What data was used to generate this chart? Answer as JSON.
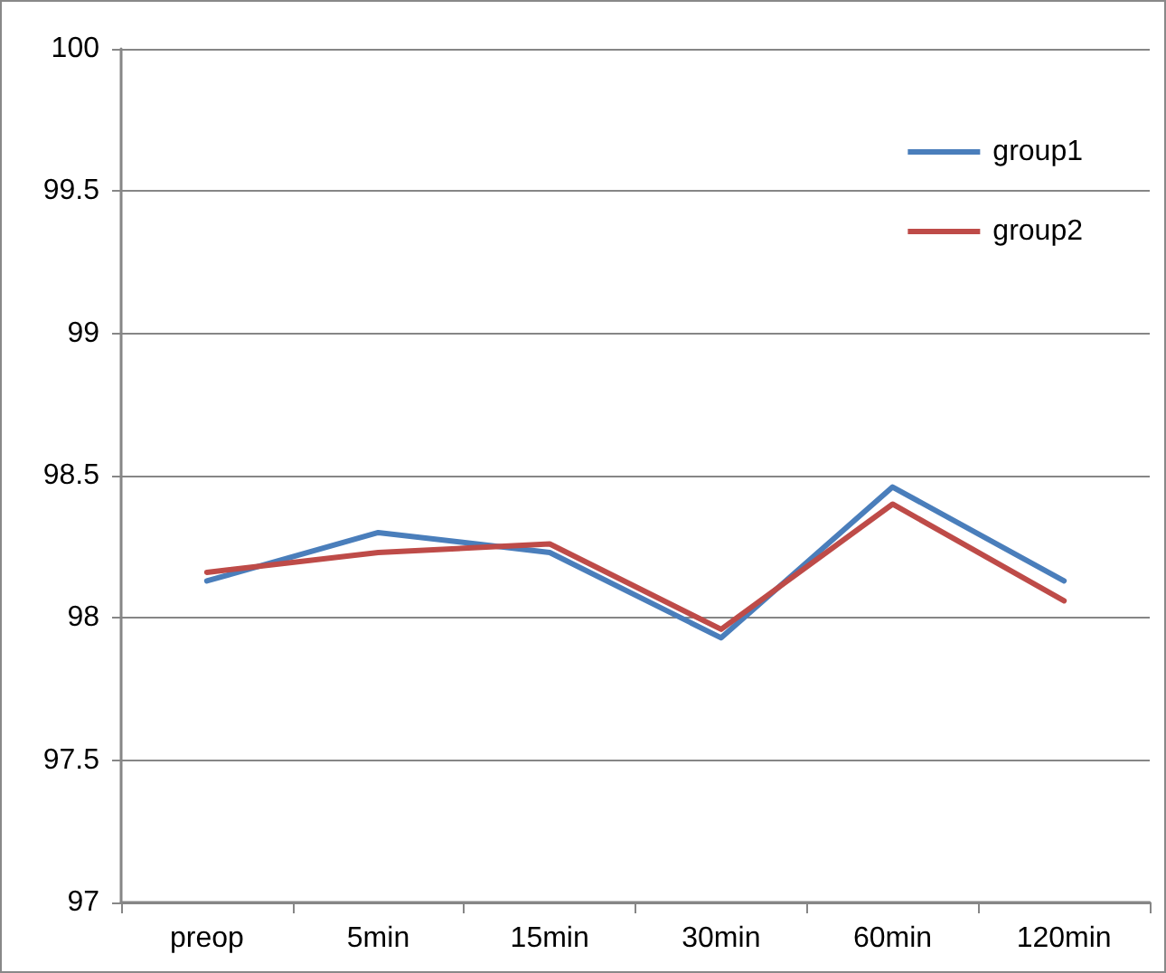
{
  "chart_data": {
    "type": "line",
    "categories": [
      "preop",
      "5min",
      "15min",
      "30min",
      "60min",
      "120min"
    ],
    "series": [
      {
        "name": "group1",
        "color": "#4a7ebb",
        "values": [
          98.13,
          98.3,
          98.23,
          97.93,
          98.46,
          98.13
        ]
      },
      {
        "name": "group2",
        "color": "#be4b48",
        "values": [
          98.16,
          98.23,
          98.26,
          97.96,
          98.4,
          98.06
        ]
      }
    ],
    "ylim": [
      97,
      100
    ],
    "yticks": [
      97,
      97.5,
      98,
      98.5,
      99,
      99.5,
      100
    ],
    "grid": "y",
    "legend": "top right",
    "marker": "none",
    "line_style": "solid"
  }
}
